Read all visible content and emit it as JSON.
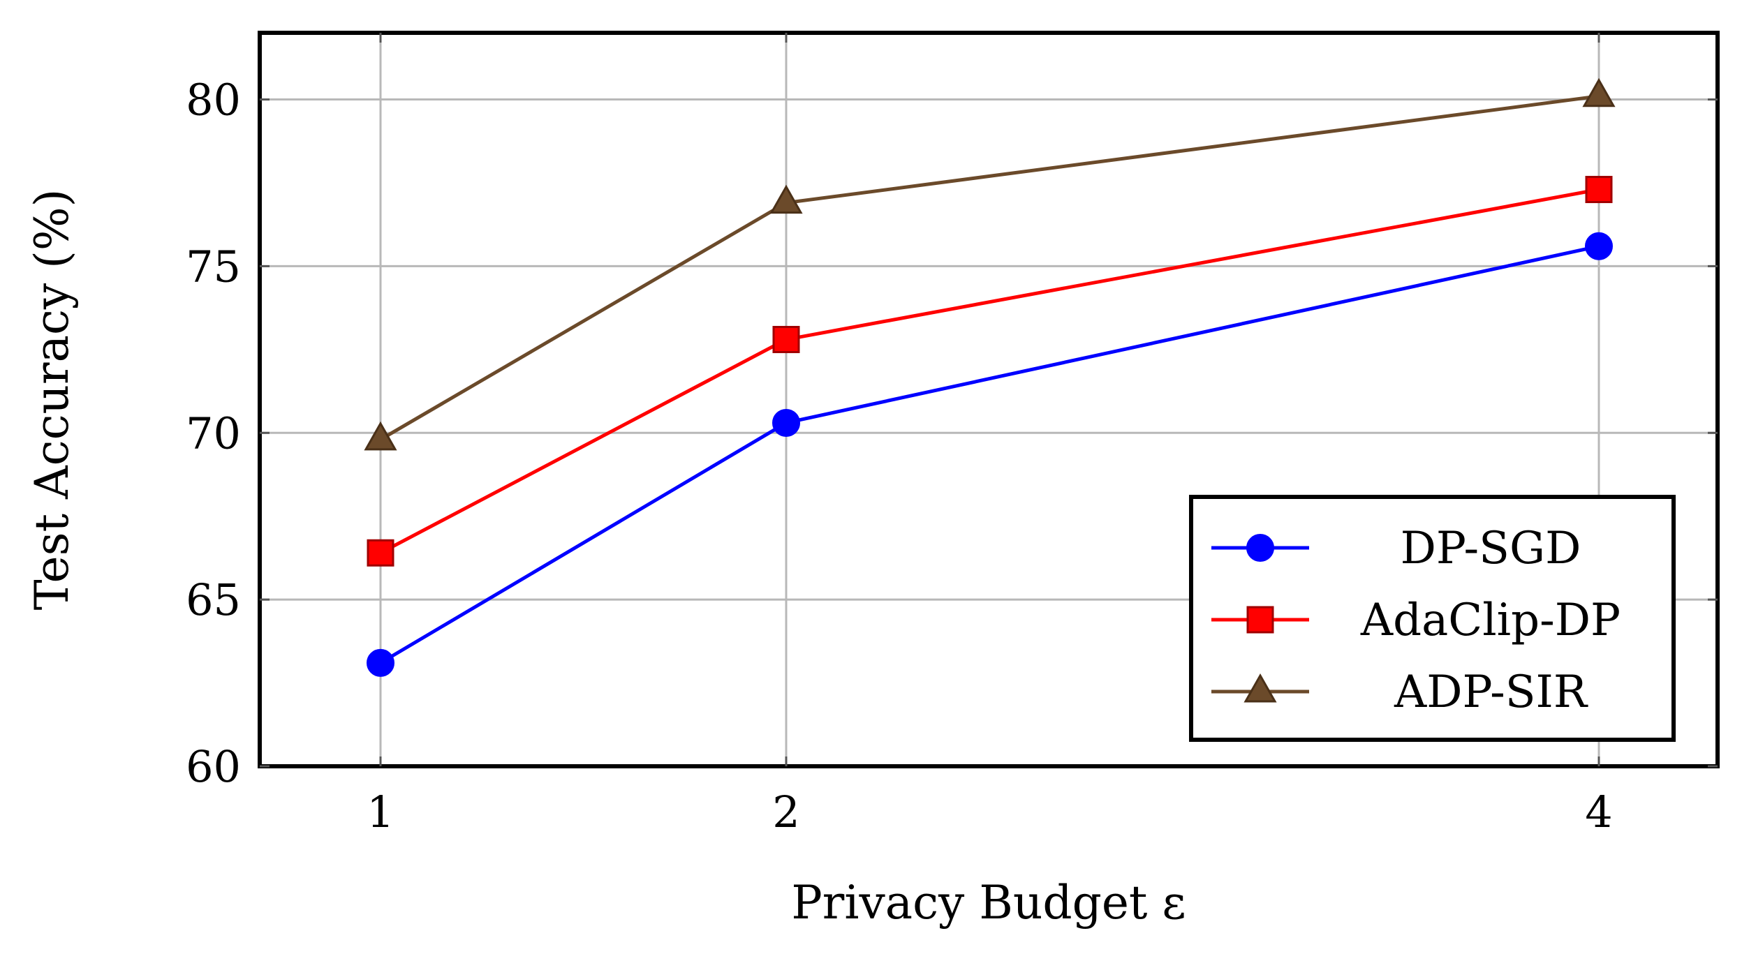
{
  "chart_data": {
    "type": "line",
    "title": "",
    "xlabel": "Privacy Budget ε",
    "ylabel": "Test Accuracy (%)",
    "x": [
      1,
      2,
      4
    ],
    "x_ticks": [
      "1",
      "2",
      "4"
    ],
    "y_ticks": [
      "60",
      "65",
      "70",
      "75",
      "80"
    ],
    "ylim": [
      60,
      82
    ],
    "grid": true,
    "legend_position": "bottom-right",
    "series": [
      {
        "name": "DP-SGD",
        "values": [
          63.1,
          70.3,
          75.6
        ],
        "color": "#0000ff",
        "marker": "circle"
      },
      {
        "name": "AdaClip-DP",
        "values": [
          66.4,
          72.8,
          77.3
        ],
        "color": "#ff0000",
        "marker": "square"
      },
      {
        "name": "ADP-SIR",
        "values": [
          69.8,
          76.9,
          80.1
        ],
        "color": "#6b4a2a",
        "marker": "triangle"
      }
    ]
  }
}
